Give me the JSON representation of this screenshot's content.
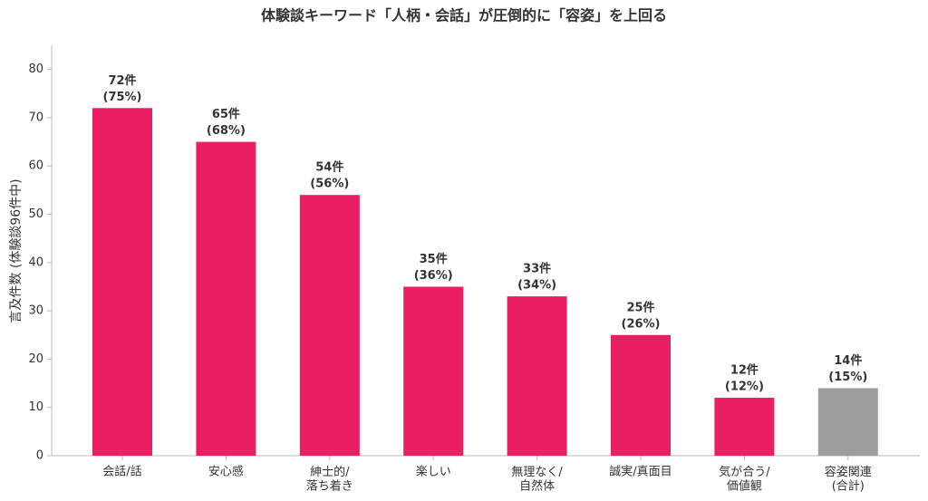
{
  "chart_data": {
    "type": "bar",
    "title": "体験談キーワード「人柄・会話」が圧倒的に「容姿」を上回る",
    "y_label": "言及件数 (体験談96件中)",
    "categories": [
      "会話/話",
      "安心感",
      "紳士的/\n落ち着き",
      "楽しい",
      "無理なく/\n自然体",
      "誠実/真面目",
      "気が合う/\n価値観",
      "容姿関連\n(合計)"
    ],
    "values": [
      72,
      65,
      54,
      35,
      33,
      25,
      12,
      14
    ],
    "value_labels": [
      "72件",
      "65件",
      "54件",
      "35件",
      "33件",
      "25件",
      "12件",
      "14件"
    ],
    "share_labels": [
      "(75%)",
      "(68%)",
      "(56%)",
      "(36%)",
      "(34%)",
      "(26%)",
      "(12%)",
      "(15%)"
    ],
    "colors": [
      "#e91e63",
      "#e91e63",
      "#e91e63",
      "#e91e63",
      "#e91e63",
      "#e91e63",
      "#e91e63",
      "#9e9e9e"
    ],
    "ylim": [
      0,
      85
    ],
    "yticks": [
      0,
      10,
      20,
      30,
      40,
      50,
      60,
      70,
      80
    ],
    "grid": false
  }
}
